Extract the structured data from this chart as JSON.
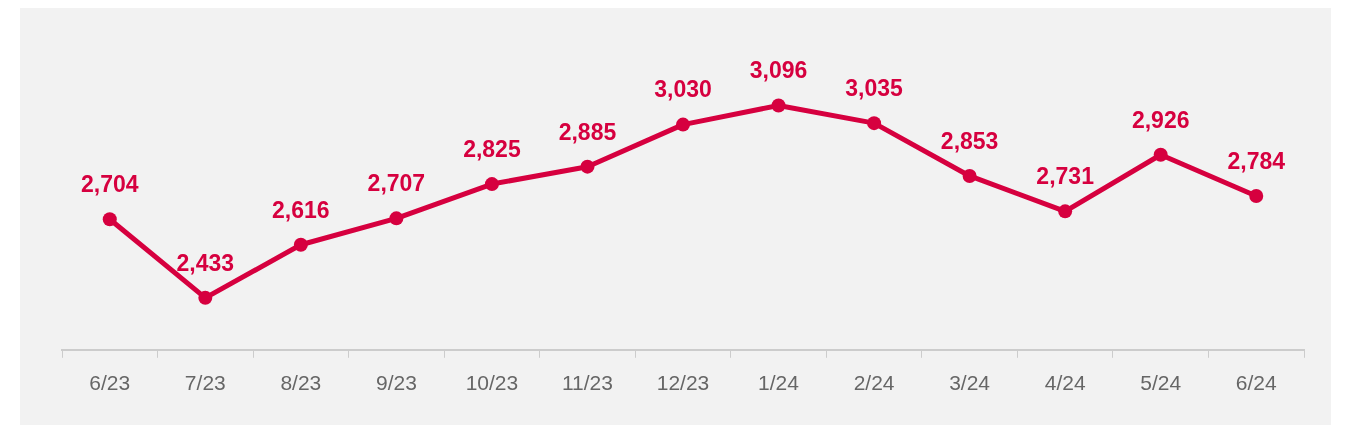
{
  "chart_data": {
    "type": "line",
    "categories": [
      "6/23",
      "7/23",
      "8/23",
      "9/23",
      "10/23",
      "11/23",
      "12/23",
      "1/24",
      "2/24",
      "3/24",
      "4/24",
      "5/24",
      "6/24"
    ],
    "series": [
      {
        "color": "#d6003f",
        "values": [
          2704,
          2433,
          2616,
          2707,
          2825,
          2885,
          3030,
          3096,
          3035,
          2853,
          2731,
          2926,
          2784
        ],
        "value_labels": [
          "2,704",
          "2,433",
          "2,616",
          "2,707",
          "2,825",
          "2,885",
          "3,030",
          "3,096",
          "3,035",
          "2,853",
          "2,731",
          "2,926",
          "2,784"
        ]
      }
    ],
    "tick_labels": "x",
    "marker": "circle",
    "line_style": "solid",
    "grid": false,
    "legend": false
  }
}
